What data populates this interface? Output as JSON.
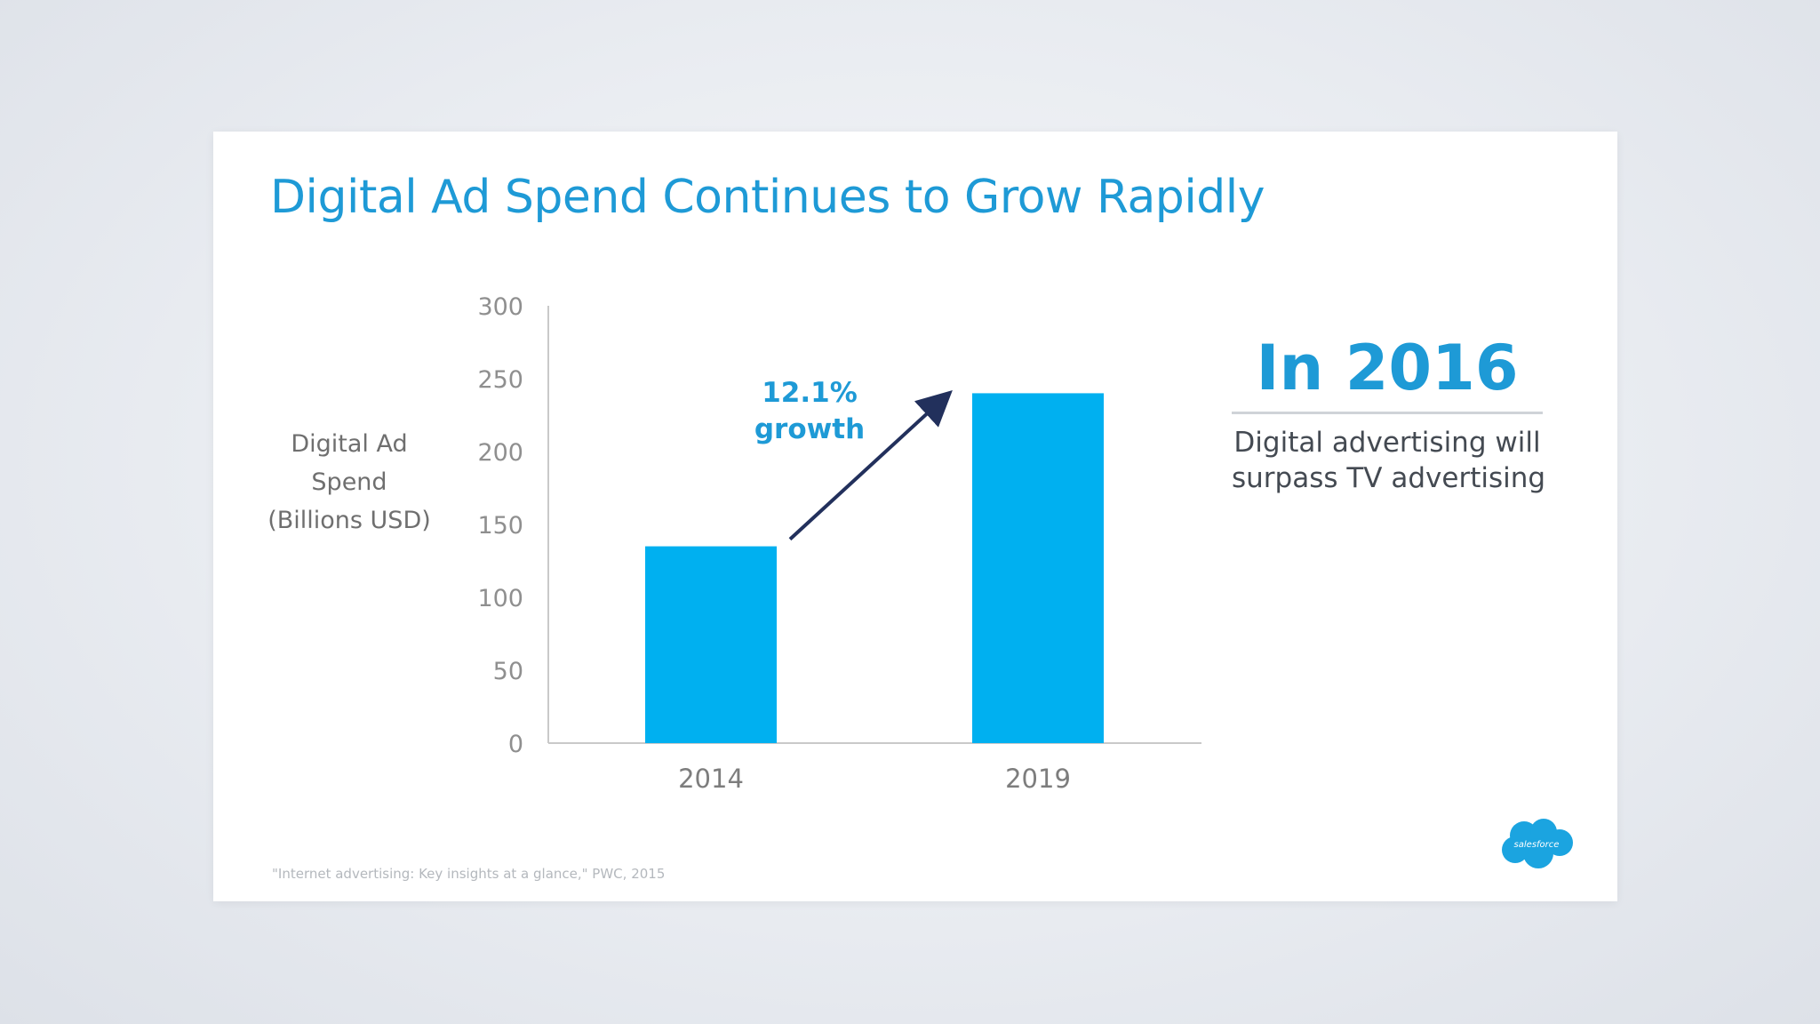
{
  "slide": {
    "title": "Digital Ad Spend Continues to Grow Rapidly",
    "callout": {
      "heading": "In 2016",
      "body_lines": [
        "Digital advertising will",
        "surpass TV advertising"
      ]
    },
    "source_note": "\"Internet advertising: Key insights at a glance,\" PWC, 2015",
    "logo_text": "salesforce"
  },
  "chart_data": {
    "type": "bar",
    "title": "Digital Ad Spend Continues to Grow Rapidly",
    "categories": [
      "2014",
      "2019"
    ],
    "values": [
      135,
      240
    ],
    "ylabel_lines": [
      "Digital Ad",
      "Spend",
      "(Billions USD)"
    ],
    "xlabel": "",
    "ylim": [
      0,
      300
    ],
    "yticks": [
      0,
      50,
      100,
      150,
      200,
      250,
      300
    ],
    "grid": false,
    "annotation": {
      "lines": [
        "12.1%",
        "growth"
      ],
      "from": "2014",
      "to": "2019"
    },
    "colors": {
      "bar": "#00b0f0",
      "axis": "#c9c9c9",
      "arrow": "#22305c",
      "accent": "#1e9ad6"
    }
  }
}
